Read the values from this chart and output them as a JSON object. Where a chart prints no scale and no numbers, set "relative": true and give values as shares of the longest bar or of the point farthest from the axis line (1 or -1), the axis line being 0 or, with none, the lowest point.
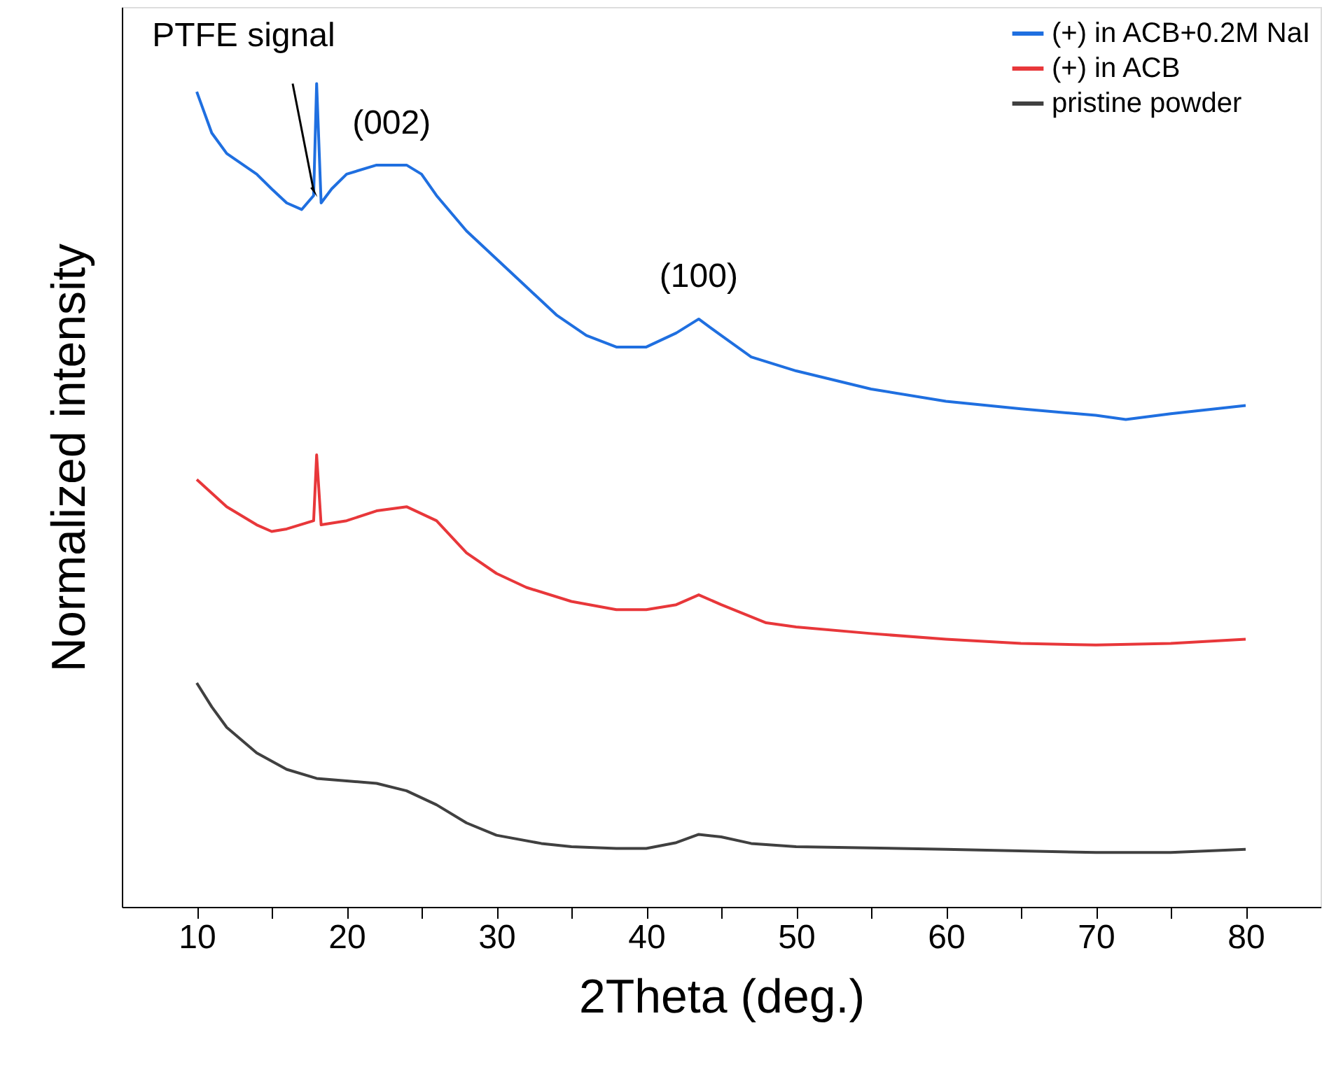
{
  "chart_data": {
    "type": "line",
    "relative": true,
    "xlabel": "2Theta (deg.)",
    "ylabel": "Normalized intensity",
    "xlim": [
      5,
      85
    ],
    "xticks": [
      10,
      {
        "value": 15,
        "label": null
      },
      20,
      {
        "value": 25,
        "label": null
      },
      30,
      {
        "value": 35,
        "label": null
      },
      40,
      {
        "value": 45,
        "label": null
      },
      50,
      {
        "value": 55,
        "label": null
      },
      60,
      {
        "value": 65,
        "label": null
      },
      70,
      {
        "value": 75,
        "label": null
      },
      80
    ],
    "grid": false,
    "legend": "top right",
    "marker": "none",
    "line_style": "solid",
    "tick_labels": "x",
    "series": [
      {
        "name": "(+) in ACB+0.2M NaI",
        "color": "#1f6fe0",
        "x": [
          10,
          11,
          12,
          14,
          15,
          16,
          17,
          17.8,
          18,
          18.3,
          19,
          20,
          22,
          24,
          25,
          26,
          28,
          30,
          32,
          34,
          36,
          38,
          40,
          42,
          43.5,
          45,
          47,
          50,
          55,
          60,
          65,
          70,
          72,
          75,
          80
        ],
        "values": [
          0.99,
          0.94,
          0.915,
          0.89,
          0.872,
          0.855,
          0.847,
          0.864,
          1.0,
          0.855,
          0.872,
          0.89,
          0.901,
          0.901,
          0.89,
          0.864,
          0.821,
          0.787,
          0.753,
          0.719,
          0.694,
          0.68,
          0.68,
          0.697,
          0.714,
          0.694,
          0.668,
          0.651,
          0.629,
          0.614,
          0.605,
          0.597,
          0.592,
          0.599,
          0.609
        ]
      },
      {
        "name": "(+) in ACB",
        "color": "#e8373a",
        "x": [
          10,
          12,
          14,
          15,
          16,
          17.8,
          18,
          18.3,
          20,
          22,
          24,
          26,
          28,
          30,
          32,
          35,
          38,
          40,
          42,
          43.5,
          45,
          48,
          50,
          55,
          60,
          65,
          70,
          75,
          80
        ],
        "values": [
          0.519,
          0.486,
          0.464,
          0.456,
          0.459,
          0.469,
          0.549,
          0.464,
          0.469,
          0.481,
          0.486,
          0.469,
          0.43,
          0.405,
          0.388,
          0.371,
          0.361,
          0.361,
          0.367,
          0.379,
          0.367,
          0.345,
          0.34,
          0.332,
          0.325,
          0.32,
          0.318,
          0.32,
          0.325
        ]
      },
      {
        "name": "pristine powder",
        "color": "#404040",
        "x": [
          10,
          11,
          12,
          14,
          16,
          18,
          20,
          22,
          24,
          26,
          28,
          30,
          33,
          35,
          38,
          40,
          42,
          43.5,
          45,
          47,
          50,
          60,
          70,
          75,
          80
        ],
        "values": [
          0.272,
          0.243,
          0.218,
          0.187,
          0.167,
          0.156,
          0.153,
          0.15,
          0.141,
          0.124,
          0.102,
          0.087,
          0.077,
          0.073,
          0.071,
          0.071,
          0.078,
          0.088,
          0.085,
          0.077,
          0.073,
          0.07,
          0.066,
          0.066,
          0.07
        ]
      }
    ],
    "annotations": [
      {
        "text": "PTFE signal",
        "x": 17.8,
        "y": 0.87
      },
      {
        "text": "(002)",
        "x": 23,
        "y": 0.9
      },
      {
        "text": "(100)",
        "x": 43.5,
        "y": 0.714
      }
    ]
  }
}
